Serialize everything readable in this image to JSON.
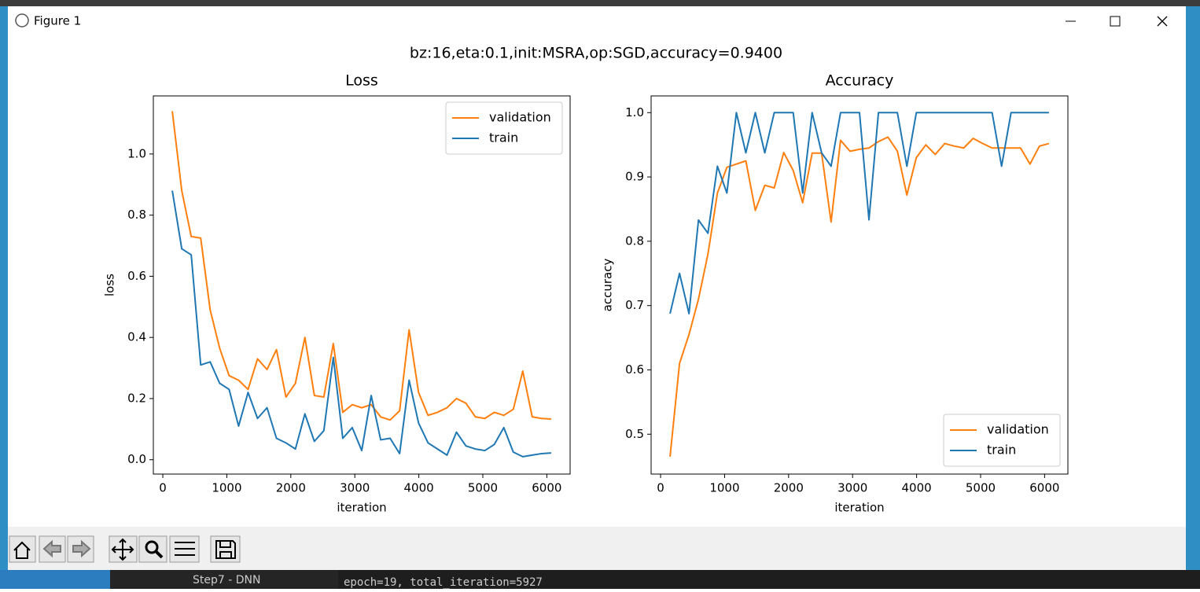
{
  "window": {
    "title": "Figure 1"
  },
  "suptitle": "bz:16,eta:0.1,init:MSRA,op:SGD,accuracy=0.9400",
  "background": {
    "explorer_item": "Step7 - DNN",
    "terminal_line": "epoch=19, total_iteration=5927"
  },
  "chart_data": [
    {
      "type": "line",
      "title": "Loss",
      "x_label": "iteration",
      "y_label": "loss",
      "x": [
        148,
        296,
        444,
        592,
        740,
        888,
        1036,
        1184,
        1332,
        1480,
        1628,
        1776,
        1924,
        2072,
        2220,
        2368,
        2516,
        2664,
        2812,
        2960,
        3108,
        3256,
        3404,
        3552,
        3700,
        3848,
        3996,
        4144,
        4292,
        4440,
        4588,
        4736,
        4884,
        5032,
        5180,
        5328,
        5476,
        5624,
        5772,
        5920,
        6068
      ],
      "series": [
        {
          "name": "validation",
          "color": "#ff7f0e",
          "values": [
            1.14,
            0.88,
            0.73,
            0.725,
            0.49,
            0.365,
            0.275,
            0.26,
            0.23,
            0.33,
            0.295,
            0.36,
            0.205,
            0.25,
            0.4,
            0.21,
            0.205,
            0.38,
            0.155,
            0.18,
            0.17,
            0.18,
            0.14,
            0.13,
            0.16,
            0.425,
            0.22,
            0.145,
            0.155,
            0.17,
            0.2,
            0.185,
            0.14,
            0.135,
            0.155,
            0.145,
            0.165,
            0.29,
            0.14,
            0.135,
            0.133
          ]
        },
        {
          "name": "train",
          "color": "#1f77b4",
          "values": [
            0.88,
            0.69,
            0.67,
            0.31,
            0.32,
            0.25,
            0.23,
            0.11,
            0.22,
            0.135,
            0.17,
            0.07,
            0.055,
            0.035,
            0.15,
            0.06,
            0.095,
            0.335,
            0.07,
            0.105,
            0.03,
            0.21,
            0.065,
            0.07,
            0.02,
            0.26,
            0.12,
            0.055,
            0.035,
            0.015,
            0.09,
            0.045,
            0.035,
            0.03,
            0.05,
            0.105,
            0.025,
            0.01,
            0.015,
            0.02,
            0.022
          ]
        }
      ],
      "xlim": [
        -148,
        6364
      ],
      "xticks": [
        0,
        1000,
        2000,
        3000,
        4000,
        5000,
        6000
      ],
      "ylim": [
        -0.047,
        1.19
      ],
      "yticks": [
        {
          "value": 0,
          "label": "0.0"
        },
        0.2,
        0.4,
        0.6,
        0.8,
        {
          "value": 1,
          "label": "1.0"
        }
      ],
      "legend": "upper right"
    },
    {
      "type": "line",
      "title": "Accuracy",
      "x_label": "iteration",
      "y_label": "accuracy",
      "x": [
        148,
        296,
        444,
        592,
        740,
        888,
        1036,
        1184,
        1332,
        1480,
        1628,
        1776,
        1924,
        2072,
        2220,
        2368,
        2516,
        2664,
        2812,
        2960,
        3108,
        3256,
        3404,
        3552,
        3700,
        3848,
        3996,
        4144,
        4292,
        4440,
        4588,
        4736,
        4884,
        5032,
        5180,
        5328,
        5476,
        5624,
        5772,
        5920,
        6068
      ],
      "series": [
        {
          "name": "validation",
          "color": "#ff7f0e",
          "values": [
            0.465,
            0.61,
            0.655,
            0.71,
            0.78,
            0.875,
            0.915,
            0.92,
            0.925,
            0.848,
            0.887,
            0.883,
            0.938,
            0.91,
            0.86,
            0.937,
            0.937,
            0.83,
            0.957,
            0.94,
            0.943,
            0.945,
            0.955,
            0.962,
            0.94,
            0.872,
            0.93,
            0.95,
            0.935,
            0.952,
            0.948,
            0.945,
            0.96,
            0.952,
            0.945,
            0.945,
            0.945,
            0.945,
            0.92,
            0.948,
            0.952
          ]
        },
        {
          "name": "train",
          "color": "#1f77b4",
          "values": [
            0.6875,
            0.75,
            0.6875,
            0.833,
            0.8125,
            0.9167,
            0.875,
            1,
            0.9375,
            1,
            0.9375,
            1,
            1,
            1,
            0.875,
            1,
            0.9375,
            0.9167,
            1,
            1,
            1,
            0.8333,
            1,
            1,
            1,
            0.9167,
            1,
            1,
            1,
            1,
            1,
            1,
            1,
            1,
            1,
            0.9167,
            1,
            1,
            1,
            1,
            1
          ]
        }
      ],
      "xlim": [
        -148,
        6364
      ],
      "xticks": [
        0,
        1000,
        2000,
        3000,
        4000,
        5000,
        6000
      ],
      "ylim": [
        0.438,
        1.026
      ],
      "yticks": [
        0.5,
        0.6,
        0.7,
        0.8,
        0.9,
        {
          "value": 1,
          "label": "1.0"
        }
      ],
      "legend": "lower right"
    }
  ]
}
